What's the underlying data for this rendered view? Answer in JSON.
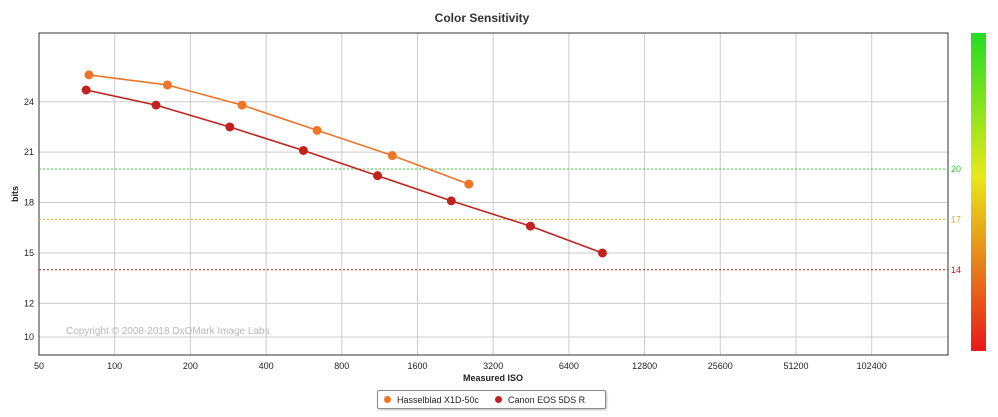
{
  "chart_data": {
    "type": "line",
    "title": "Color Sensitivity",
    "xlabel": "Measured ISO",
    "ylabel": "bits",
    "x_scale": "log2",
    "x_ticks": [
      50,
      100,
      200,
      400,
      800,
      1600,
      3200,
      6400,
      12800,
      25600,
      51200,
      102400
    ],
    "y_ticks": [
      10,
      12,
      15,
      18,
      21,
      24
    ],
    "series": [
      {
        "name": "Hasselblad X1D-50c",
        "color": "#f07426",
        "points": [
          {
            "x": 79,
            "y": 25.6
          },
          {
            "x": 162,
            "y": 25.0
          },
          {
            "x": 321,
            "y": 23.8
          },
          {
            "x": 638,
            "y": 22.3
          },
          {
            "x": 1270,
            "y": 20.8
          },
          {
            "x": 2560,
            "y": 19.1
          }
        ]
      },
      {
        "name": "Canon EOS 5DS R",
        "color": "#c0231f",
        "points": [
          {
            "x": 77,
            "y": 24.7
          },
          {
            "x": 146,
            "y": 23.8
          },
          {
            "x": 287,
            "y": 22.5
          },
          {
            "x": 563,
            "y": 21.1
          },
          {
            "x": 1110,
            "y": 19.6
          },
          {
            "x": 2180,
            "y": 18.1
          },
          {
            "x": 4500,
            "y": 16.6
          },
          {
            "x": 8700,
            "y": 15.0
          }
        ]
      }
    ],
    "reference_lines": [
      {
        "label": "20",
        "y": 20,
        "color": "#33cc33"
      },
      {
        "label": "17",
        "y": 17,
        "color": "#e6a817"
      },
      {
        "label": "14",
        "y": 14,
        "color": "#cc1111"
      }
    ],
    "annotation": "Copyright © 2008-2018 DxOMark Image Labs",
    "grid": true,
    "legend_position": "bottom-center"
  }
}
